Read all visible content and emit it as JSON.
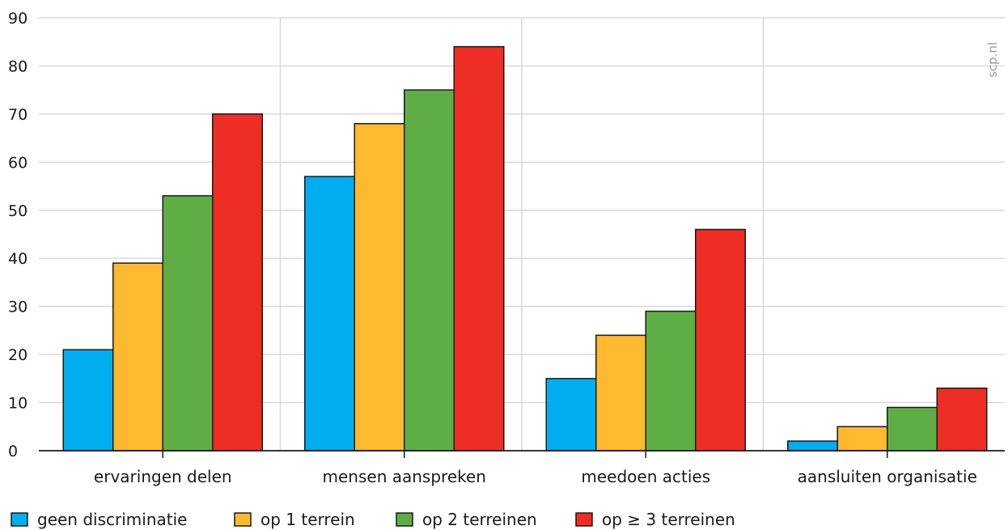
{
  "chart_data": {
    "type": "bar",
    "categories": [
      "ervaringen delen",
      "mensen aanspreken",
      "meedoen acties",
      "aansluiten organisatie"
    ],
    "series": [
      {
        "name": "geen discriminatie",
        "color": "#00aeef",
        "values": [
          21,
          57,
          15,
          2
        ]
      },
      {
        "name": "op 1 terrein",
        "color": "#fdb92f",
        "values": [
          39,
          68,
          24,
          5
        ]
      },
      {
        "name": "op 2 terreinen",
        "color": "#5fae45",
        "values": [
          53,
          75,
          29,
          9
        ]
      },
      {
        "name": "op ≥ 3 terreinen",
        "color": "#ee2d24",
        "values": [
          70,
          84,
          46,
          13
        ]
      }
    ],
    "yticks": [
      "0",
      "10",
      "20",
      "30",
      "40",
      "50",
      "60",
      "70",
      "80",
      "90"
    ],
    "ylim": [
      0,
      90
    ],
    "grid": true,
    "legend_position": "bottom",
    "source": "scp.nl"
  }
}
